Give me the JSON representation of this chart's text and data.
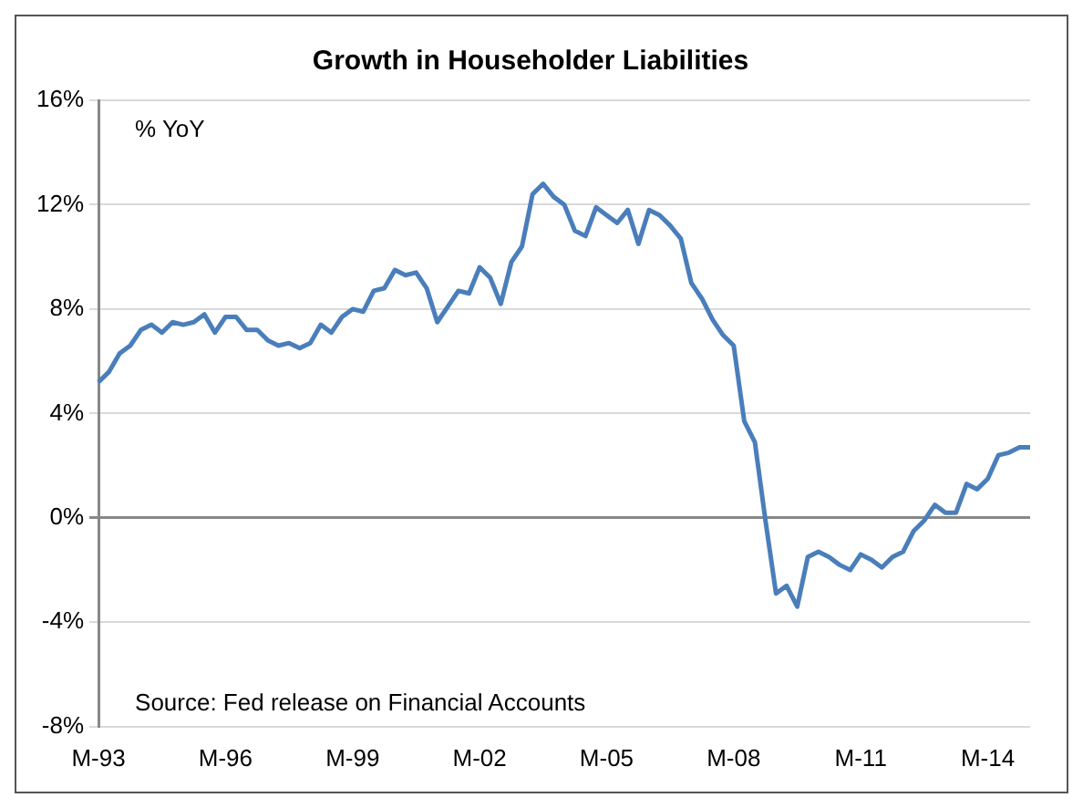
{
  "chart_data": {
    "type": "line",
    "title": "Growth in Householder Liabilities",
    "ylabel": "% YoY",
    "annotations": [
      "Source: Fed release on Financial Accounts"
    ],
    "categories": [
      "M-93",
      null,
      null,
      null,
      null,
      null,
      null,
      null,
      null,
      null,
      null,
      null,
      "M-96",
      null,
      null,
      null,
      null,
      null,
      null,
      null,
      null,
      null,
      null,
      null,
      "M-99",
      null,
      null,
      null,
      null,
      null,
      null,
      null,
      null,
      null,
      null,
      null,
      "M-02",
      null,
      null,
      null,
      null,
      null,
      null,
      null,
      null,
      null,
      null,
      null,
      "M-05",
      null,
      null,
      null,
      null,
      null,
      null,
      null,
      null,
      null,
      null,
      null,
      "M-08",
      null,
      null,
      null,
      null,
      null,
      null,
      null,
      null,
      null,
      null,
      null,
      "M-11",
      null,
      null,
      null,
      null,
      null,
      null,
      null,
      null,
      null,
      null,
      null,
      "M-14",
      null,
      null,
      null,
      null
    ],
    "series": [
      {
        "color": "#4a7ebb",
        "values": [
          5.2,
          5.6,
          6.3,
          6.6,
          7.2,
          7.4,
          7.1,
          7.5,
          7.4,
          7.5,
          7.8,
          7.1,
          7.7,
          7.7,
          7.2,
          7.2,
          6.8,
          6.6,
          6.7,
          6.5,
          6.7,
          7.4,
          7.1,
          7.7,
          8.0,
          7.9,
          8.7,
          8.8,
          9.5,
          9.3,
          9.4,
          8.8,
          7.5,
          8.1,
          8.7,
          8.6,
          9.6,
          9.2,
          8.2,
          9.8,
          10.4,
          12.4,
          12.8,
          12.3,
          12.0,
          11.0,
          10.8,
          11.9,
          11.6,
          11.3,
          11.8,
          10.5,
          11.8,
          11.6,
          11.2,
          10.7,
          9.0,
          8.4,
          7.6,
          7.0,
          6.6,
          3.7,
          2.9,
          -0.1,
          -2.9,
          -2.6,
          -3.4,
          -1.5,
          -1.3,
          -1.5,
          -1.8,
          -2.0,
          -1.4,
          -1.6,
          -1.9,
          -1.5,
          -1.3,
          -0.5,
          -0.1,
          0.5,
          0.2,
          0.2,
          1.3,
          1.1,
          1.5,
          2.4,
          2.5,
          2.7,
          2.7
        ]
      }
    ],
    "ylim": [
      -8,
      16
    ],
    "yticks": [
      {
        "value": -8,
        "label": "-8%"
      },
      {
        "value": -4,
        "label": "-4%"
      },
      {
        "value": 0,
        "label": "0%"
      },
      {
        "value": 4,
        "label": "4%"
      },
      {
        "value": 8,
        "label": "8%"
      },
      {
        "value": 12,
        "label": "12%"
      },
      {
        "value": 16,
        "label": "16%"
      }
    ],
    "grid": "y",
    "legend": false,
    "marker": "none",
    "line_style": "solid"
  }
}
